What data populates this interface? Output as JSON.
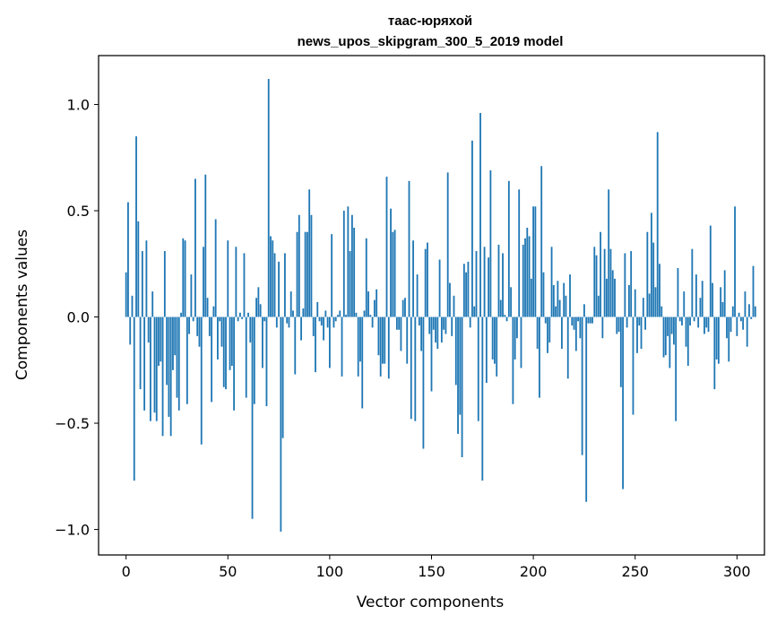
{
  "chart_data": {
    "type": "bar",
    "title_line1": "таас-юряхой",
    "title_line2": "news_upos_skipgram_300_5_2019 model",
    "xlabel": "Vector components",
    "ylabel": "Components values",
    "xlim": [
      -13.5,
      313.5
    ],
    "ylim": [
      -1.12,
      1.23
    ],
    "xticks": [
      0,
      50,
      100,
      150,
      200,
      250,
      300
    ],
    "xtick_labels": [
      "0",
      "50",
      "100",
      "150",
      "200",
      "250",
      "300"
    ],
    "yticks": [
      -1.0,
      -0.5,
      0.0,
      0.5,
      1.0
    ],
    "ytick_labels": [
      "−1.0",
      "−0.5",
      "0.0",
      "0.5",
      "1.0"
    ],
    "bar_color": "#1f77b4",
    "grid": false,
    "series": [
      {
        "name": "components",
        "values": [
          0.21,
          0.54,
          -0.13,
          0.1,
          -0.77,
          0.85,
          0.45,
          -0.34,
          0.31,
          -0.44,
          0.36,
          -0.12,
          -0.49,
          0.12,
          -0.45,
          -0.49,
          -0.23,
          -0.21,
          -0.56,
          0.31,
          -0.32,
          -0.47,
          -0.56,
          -0.25,
          -0.18,
          -0.38,
          -0.44,
          0.02,
          0.37,
          0.36,
          -0.41,
          -0.08,
          0.2,
          -0.02,
          0.65,
          -0.09,
          -0.14,
          -0.6,
          0.33,
          0.67,
          0.09,
          -0.09,
          -0.4,
          0.05,
          0.46,
          -0.2,
          -0.02,
          -0.14,
          -0.33,
          -0.34,
          0.36,
          -0.25,
          -0.23,
          -0.44,
          0.33,
          -0.02,
          0.02,
          -0.01,
          0.3,
          -0.38,
          0.02,
          -0.12,
          -0.95,
          -0.41,
          0.09,
          0.14,
          0.06,
          -0.24,
          -0.02,
          -0.42,
          1.12,
          0.38,
          0.36,
          0.3,
          -0.05,
          0.26,
          -1.01,
          -0.57,
          0.3,
          -0.03,
          -0.05,
          0.12,
          0.03,
          -0.27,
          0.4,
          0.48,
          -0.11,
          0.04,
          0.4,
          0.4,
          0.6,
          0.48,
          -0.09,
          -0.26,
          0.07,
          -0.02,
          -0.04,
          -0.11,
          0.03,
          -0.05,
          -0.24,
          0.39,
          -0.05,
          -0.02,
          0.01,
          0.03,
          -0.28,
          0.5,
          0.01,
          0.52,
          0.31,
          0.48,
          0.42,
          0.02,
          -0.28,
          -0.21,
          -0.43,
          0.03,
          0.37,
          0.12,
          0.01,
          -0.05,
          0.08,
          0.13,
          -0.18,
          -0.28,
          -0.22,
          -0.22,
          0.66,
          -0.29,
          0.51,
          0.4,
          0.41,
          -0.06,
          -0.06,
          -0.16,
          0.08,
          0.09,
          -0.22,
          0.64,
          -0.48,
          0.36,
          -0.49,
          0.2,
          -0.04,
          -0.16,
          -0.62,
          0.32,
          0.35,
          -0.08,
          -0.35,
          -0.06,
          -0.12,
          -0.15,
          0.27,
          -0.12,
          -0.06,
          -0.08,
          0.68,
          0.16,
          -0.09,
          0.1,
          -0.32,
          -0.55,
          -0.46,
          -0.66,
          0.25,
          0.21,
          0.26,
          -0.05,
          0.83,
          0.05,
          0.31,
          -0.49,
          0.96,
          -0.77,
          0.33,
          -0.31,
          0.28,
          0.69,
          -0.2,
          -0.22,
          -0.28,
          0.34,
          0.08,
          0.3,
          0.01,
          -0.02,
          0.64,
          0.14,
          -0.41,
          -0.2,
          -0.1,
          0.6,
          -0.24,
          0.34,
          0.37,
          0.42,
          0.38,
          0.18,
          0.52,
          0.52,
          -0.15,
          -0.38,
          0.71,
          0.21,
          -0.03,
          -0.17,
          -0.12,
          0.33,
          0.15,
          0.05,
          0.17,
          0.08,
          -0.15,
          0.16,
          0.1,
          -0.29,
          0.2,
          -0.04,
          -0.06,
          -0.16,
          -0.02,
          -0.1,
          -0.65,
          0.06,
          -0.87,
          -0.03,
          -0.03,
          -0.03,
          0.33,
          0.29,
          0.1,
          0.4,
          -0.1,
          0.32,
          0.18,
          0.6,
          0.32,
          0.22,
          0.18,
          -0.08,
          -0.07,
          -0.33,
          -0.81,
          0.3,
          -0.05,
          0.15,
          0.31,
          -0.46,
          0.13,
          -0.17,
          -0.04,
          -0.15,
          0.09,
          -0.06,
          0.4,
          0.11,
          0.49,
          0.35,
          0.14,
          0.87,
          0.25,
          0.05,
          -0.19,
          -0.18,
          -0.09,
          -0.24,
          -0.08,
          -0.13,
          -0.49,
          0.23,
          -0.02,
          -0.04,
          0.12,
          -0.14,
          -0.23,
          -0.04,
          0.32,
          -0.02,
          0.2,
          -0.05,
          0.09,
          0.17,
          -0.08,
          -0.05,
          -0.07,
          0.43,
          0.16,
          -0.34,
          -0.2,
          -0.22,
          0.14,
          0.07,
          0.22,
          -0.1,
          -0.21,
          -0.07,
          0.05,
          0.52,
          -0.09,
          0.02,
          -0.02,
          -0.06,
          0.12,
          -0.14,
          0.06,
          -0.01,
          0.24,
          0.05
        ]
      }
    ]
  }
}
